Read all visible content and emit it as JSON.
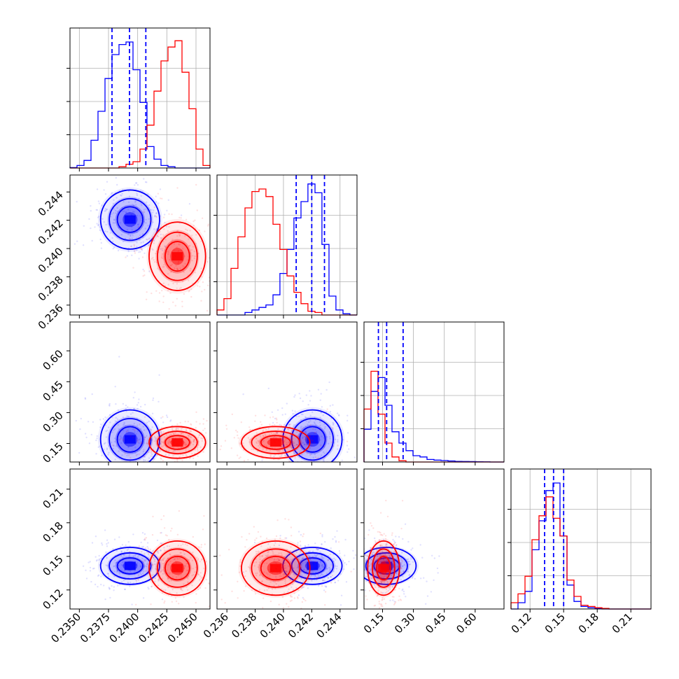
{
  "colors": {
    "series_a": "#0000ff",
    "series_b": "#ff0000",
    "grid": "#b0b0b0",
    "frame": "#000000"
  },
  "chart_data": {
    "type": "corner",
    "title": "",
    "grid": true,
    "parameters": [
      {
        "label": "",
        "range": [
          0.2342,
          0.2462
        ],
        "ticks": [
          "0.2350",
          "0.2375",
          "0.2400",
          "0.2425",
          "0.2450"
        ]
      },
      {
        "label": "",
        "range": [
          0.2353,
          0.2452
        ],
        "ticks": [
          "0.236",
          "0.238",
          "0.240",
          "0.242",
          "0.244"
        ]
      },
      {
        "label": "",
        "range": [
          0.06,
          0.74
        ],
        "ticks": [
          "0.15",
          "0.30",
          "0.45",
          "0.60"
        ]
      },
      {
        "label": "",
        "range": [
          0.103,
          0.228
        ],
        "ticks": [
          "0.12",
          "0.15",
          "0.18",
          "0.21"
        ]
      }
    ],
    "series": [
      {
        "color": "#0000ff",
        "means": [
          0.23935,
          0.24205,
          0.17,
          0.1415
        ],
        "sigmas": [
          0.00115,
          0.00095,
          0.065,
          0.0075
        ],
        "quantiles": [
          [
            0.2378,
            0.2393,
            0.2407
          ],
          [
            0.2409,
            0.242,
            0.2429
          ],
          [
            0.13,
            0.17,
            0.25
          ],
          [
            0.133,
            0.141,
            0.15
          ]
        ],
        "histograms": [
          [
            0.2342,
            0.2348,
            0.2354,
            0.236,
            0.2366,
            0.2372,
            0.2378,
            0.2384,
            0.239,
            0.2396,
            0.2402,
            0.2408,
            0.2414,
            0.242,
            0.2426,
            0.2432,
            0.2438,
            0.2444,
            0.245,
            0.2456,
            0.2462
          ],
          [
            0.003,
            0.02,
            0.06,
            0.22,
            0.45,
            0.71,
            0.9,
            0.98,
            1.0,
            0.78,
            0.52,
            0.17,
            0.07,
            0.02,
            0.01,
            0.0,
            0.0,
            0.0,
            0.0,
            0.0
          ],
          [
            0.2353,
            0.23579,
            0.23629,
            0.23678,
            0.23728,
            0.23777,
            0.23827,
            0.23876,
            0.23926,
            0.23975,
            0.24025,
            0.24074,
            0.24124,
            0.24173,
            0.24223,
            0.24272,
            0.24322,
            0.24371,
            0.24421,
            0.2447,
            0.2452
          ],
          [
            0.0,
            0.0,
            0.0,
            0.0,
            0.02,
            0.04,
            0.06,
            0.08,
            0.16,
            0.33,
            0.52,
            0.77,
            0.9,
            1.04,
            0.97,
            0.56,
            0.15,
            0.04,
            0.01,
            0.0
          ],
          [
            0.06,
            0.094,
            0.128,
            0.162,
            0.196,
            0.23,
            0.264,
            0.298,
            0.332,
            0.366,
            0.4,
            0.434,
            0.468,
            0.502,
            0.536,
            0.57,
            0.604,
            0.638,
            0.672,
            0.706,
            0.74
          ],
          [
            0.26,
            0.56,
            0.67,
            0.45,
            0.24,
            0.15,
            0.09,
            0.05,
            0.04,
            0.02,
            0.015,
            0.012,
            0.008,
            0.005,
            0.004,
            0.003,
            0.002,
            0.001,
            0.0,
            0.0
          ],
          [
            0.103,
            0.10925,
            0.1155,
            0.12175,
            0.128,
            0.13425,
            0.1405,
            0.14675,
            0.153,
            0.15925,
            0.1655,
            0.17175,
            0.178,
            0.18425,
            0.1905,
            0.19675,
            0.203,
            0.20925,
            0.2155,
            0.22175,
            0.228
          ],
          [
            0.0,
            0.05,
            0.14,
            0.47,
            0.7,
            0.94,
            1.0,
            0.58,
            0.19,
            0.06,
            0.02,
            0.01,
            0.005,
            0.0,
            0.0,
            0.0,
            0.0,
            0.0,
            0.0,
            0.0
          ]
        ]
      },
      {
        "color": "#ff0000",
        "means": [
          0.2434,
          0.23945,
          0.155,
          0.1395
        ],
        "sigmas": [
          0.0011,
          0.0011,
          0.035,
          0.011
        ],
        "histograms": [
          [
            0.0,
            0.0,
            0.0,
            0.0,
            0.0,
            0.0,
            0.0,
            0.01,
            0.03,
            0.05,
            0.15,
            0.34,
            0.61,
            0.85,
            0.96,
            1.01,
            0.76,
            0.47,
            0.15,
            0.02
          ],
          [
            0.04,
            0.13,
            0.37,
            0.62,
            0.85,
            0.98,
            1.0,
            0.94,
            0.72,
            0.52,
            0.31,
            0.18,
            0.09,
            0.03,
            0.02,
            0.0,
            0.0,
            0.0,
            0.0,
            0.0
          ],
          [
            0.42,
            0.72,
            0.38,
            0.15,
            0.04,
            0.01,
            0.0,
            0.0,
            0.0,
            0.0,
            0.0,
            0.0,
            0.0,
            0.0,
            0.0,
            0.0,
            0.0,
            0.0,
            0.0,
            0.0
          ],
          [
            0.05,
            0.12,
            0.26,
            0.55,
            0.74,
            0.89,
            0.72,
            0.58,
            0.23,
            0.1,
            0.03,
            0.02,
            0.01,
            0.005,
            0.0,
            0.0,
            0.0,
            0.0,
            0.0,
            0.0
          ]
        ]
      }
    ]
  }
}
